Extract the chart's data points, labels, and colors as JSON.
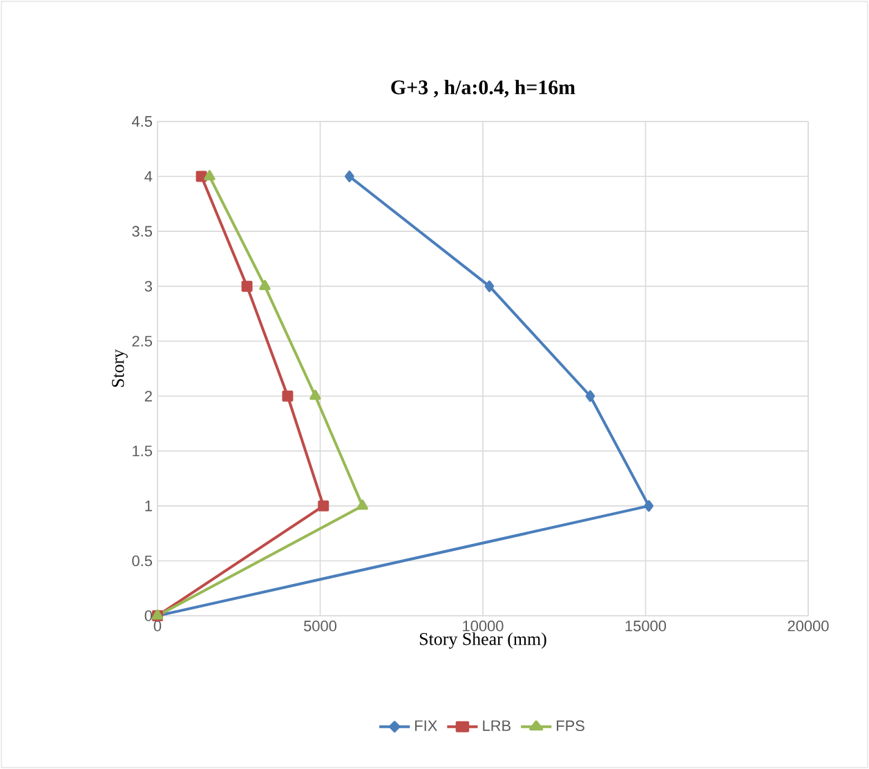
{
  "chart_data": {
    "type": "line",
    "title": "G+3 , h/a:0.4, h=16m",
    "xlabel": "Story Shear (mm)",
    "ylabel": "Story",
    "series": [
      {
        "name": "FIX",
        "color": "#4a7ebb",
        "marker": "diamond",
        "x": [
          0,
          15100,
          13300,
          10200,
          5900
        ],
        "values": [
          0,
          1,
          2,
          3,
          4
        ]
      },
      {
        "name": "LRB",
        "color": "#be4b48",
        "marker": "square",
        "x": [
          0,
          5100,
          4000,
          2750,
          1350
        ],
        "values": [
          0,
          1,
          2,
          3,
          4
        ]
      },
      {
        "name": "FPS",
        "color": "#98b954",
        "marker": "triangle",
        "x": [
          0,
          6300,
          4850,
          3300,
          1600
        ],
        "values": [
          0,
          1,
          2,
          3,
          4
        ]
      }
    ],
    "xlim": [
      0,
      20000
    ],
    "xticks": [
      0,
      5000,
      10000,
      15000,
      20000
    ],
    "ylim": [
      0,
      4.5
    ],
    "yticks": [
      0,
      0.5,
      1,
      1.5,
      2,
      2.5,
      3,
      3.5,
      4,
      4.5
    ],
    "grid": true,
    "legend": "bottom"
  }
}
